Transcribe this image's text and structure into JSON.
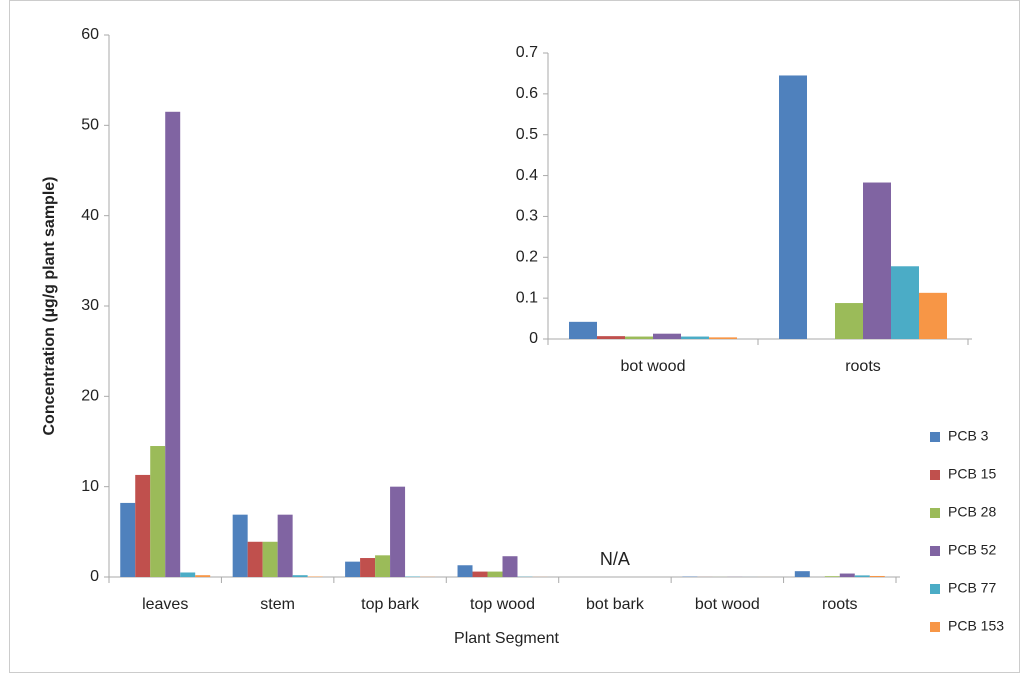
{
  "chart_data": [
    {
      "type": "bar",
      "xlabel": "Plant Segment",
      "ylabel": "Concentration (µg/g plant sample)",
      "categories": [
        "leaves",
        "stem",
        "top bark",
        "top wood",
        "bot bark",
        "bot wood",
        "roots"
      ],
      "series": [
        {
          "name": "PCB 3",
          "color": "#4f81bd",
          "values": [
            8.2,
            6.9,
            1.7,
            1.3,
            null,
            0.042,
            0.645
          ]
        },
        {
          "name": "PCB 15",
          "color": "#c0504d",
          "values": [
            11.3,
            3.9,
            2.1,
            0.6,
            null,
            0.007,
            0
          ]
        },
        {
          "name": "PCB 28",
          "color": "#9bbb59",
          "values": [
            14.5,
            3.9,
            2.4,
            0.6,
            null,
            0.006,
            0.088
          ]
        },
        {
          "name": "PCB 52",
          "color": "#8064a2",
          "values": [
            51.5,
            6.9,
            10.0,
            2.3,
            null,
            0.013,
            0.383
          ]
        },
        {
          "name": "PCB 77",
          "color": "#4bacc6",
          "values": [
            0.5,
            0.2,
            0.05,
            0.03,
            null,
            0.006,
            0.178
          ]
        },
        {
          "name": "PCB 153",
          "color": "#f79646",
          "values": [
            0.2,
            0.05,
            0.02,
            0.01,
            null,
            0.004,
            0.113
          ]
        }
      ],
      "annotations": [
        {
          "text": "N/A",
          "category": 4
        }
      ],
      "ylim": [
        0,
        60
      ],
      "yticks": [
        0,
        10,
        20,
        30,
        40,
        50,
        60
      ],
      "grid": false,
      "legend": "right"
    },
    {
      "type": "bar",
      "categories": [
        "bot wood",
        "roots"
      ],
      "series": [
        {
          "color": "#4f81bd",
          "values": [
            0.042,
            0.645
          ]
        },
        {
          "color": "#c0504d",
          "values": [
            0.007,
            0
          ]
        },
        {
          "color": "#9bbb59",
          "values": [
            0.006,
            0.088
          ]
        },
        {
          "color": "#8064a2",
          "values": [
            0.013,
            0.383
          ]
        },
        {
          "color": "#4bacc6",
          "values": [
            0.006,
            0.178
          ]
        },
        {
          "color": "#f79646",
          "values": [
            0.004,
            0.113
          ]
        }
      ],
      "ylim": [
        0,
        0.7
      ],
      "yticks": [
        0,
        0.1,
        0.2,
        0.3,
        0.4,
        0.5,
        0.6,
        0.7
      ],
      "grid": false
    }
  ]
}
